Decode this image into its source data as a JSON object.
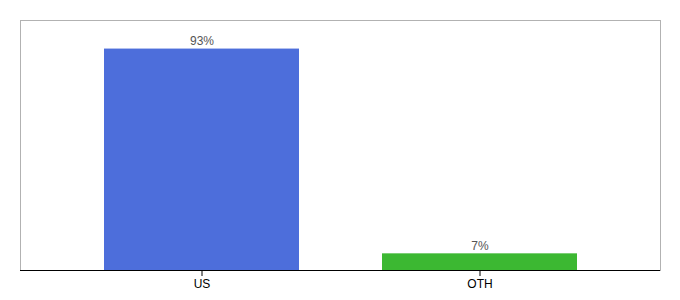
{
  "chart_data": {
    "type": "bar",
    "categories": [
      "US",
      "OTH"
    ],
    "values": [
      93,
      7
    ],
    "value_labels": [
      "93%",
      "7%"
    ],
    "colors": [
      "#4d6edb",
      "#3cb832"
    ],
    "data_labels": true,
    "ylim": [
      0,
      105
    ],
    "tick_labels": "x"
  }
}
